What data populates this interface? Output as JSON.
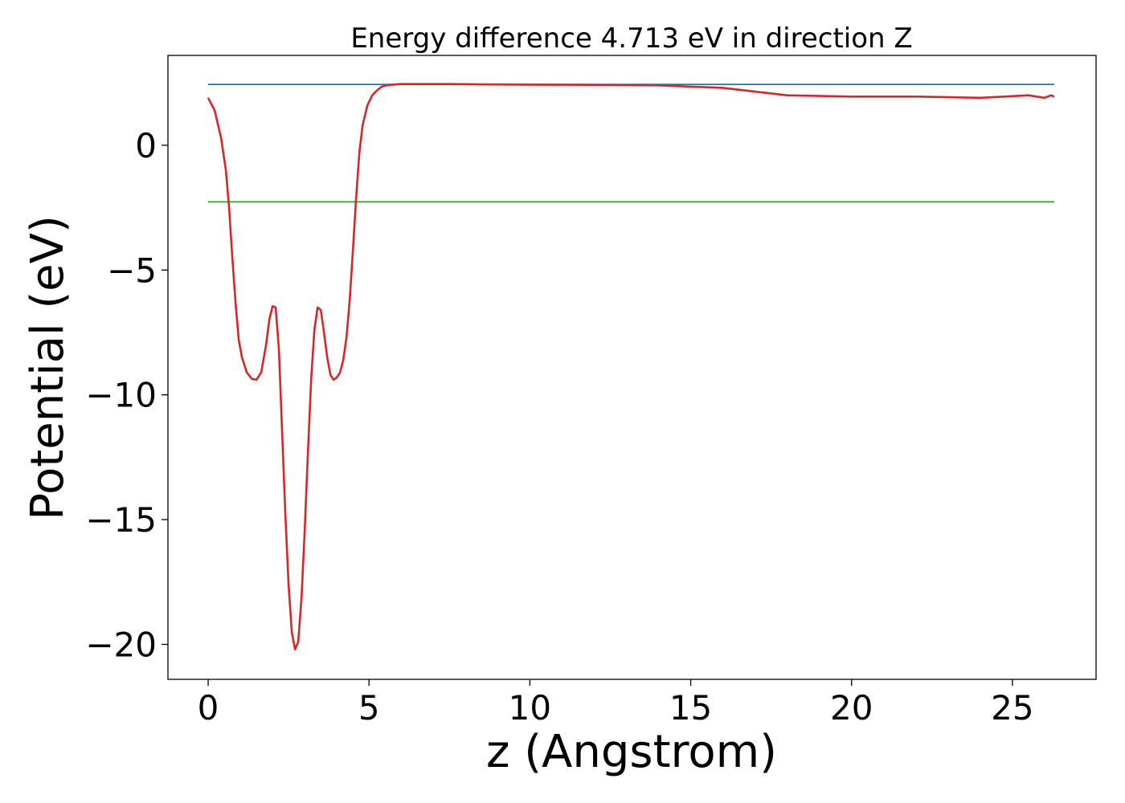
{
  "chart_data": {
    "type": "line",
    "title": "Energy difference 4.713 eV in direction Z",
    "xlabel": "z (Angstrom)",
    "ylabel": "Potential (eV)",
    "xlim": [
      -1.25,
      27.6
    ],
    "ylim": [
      -21.4,
      3.6
    ],
    "xticks": [
      0,
      5,
      10,
      15,
      20,
      25
    ],
    "xtick_labels": [
      "0",
      "5",
      "10",
      "15",
      "20",
      "25"
    ],
    "yticks": [
      0,
      -5,
      -10,
      -15,
      -20
    ],
    "ytick_labels": [
      "0",
      "−5",
      "−10",
      "−15",
      "−20"
    ],
    "grid": false,
    "series": [
      {
        "color": "#1f77b4",
        "x": [
          0,
          26.3
        ],
        "y": [
          2.44,
          2.44
        ]
      },
      {
        "color": "#2ca02c",
        "x": [
          0,
          26.3
        ],
        "y": [
          -2.27,
          -2.27
        ]
      },
      {
        "color": "#d62728",
        "x": [
          0,
          0.2,
          0.4,
          0.55,
          0.65,
          0.75,
          0.85,
          0.95,
          1.05,
          1.2,
          1.35,
          1.5,
          1.65,
          1.8,
          1.9,
          2.0,
          2.1,
          2.2,
          2.3,
          2.4,
          2.5,
          2.6,
          2.7,
          2.8,
          2.9,
          3.0,
          3.1,
          3.2,
          3.3,
          3.4,
          3.5,
          3.6,
          3.7,
          3.8,
          3.9,
          4.0,
          4.1,
          4.2,
          4.3,
          4.4,
          4.5,
          4.6,
          4.7,
          4.8,
          4.95,
          5.1,
          5.25,
          5.4,
          5.55,
          5.65,
          5.75,
          5.85,
          6.0,
          6.2,
          6.5,
          7.0,
          7.5,
          8.5,
          10,
          12,
          14,
          16,
          18,
          20,
          22,
          24,
          25.5,
          26.0,
          26.2,
          26.3
        ],
        "y": [
          1.9,
          1.4,
          0.3,
          -1.0,
          -2.5,
          -4.5,
          -6.3,
          -7.8,
          -8.5,
          -9.1,
          -9.35,
          -9.4,
          -9.1,
          -8.0,
          -7.0,
          -6.45,
          -6.5,
          -8.2,
          -11.5,
          -14.8,
          -17.6,
          -19.5,
          -20.2,
          -19.9,
          -18.2,
          -15.5,
          -12.3,
          -9.4,
          -7.4,
          -6.5,
          -6.6,
          -7.5,
          -8.5,
          -9.2,
          -9.4,
          -9.3,
          -9.1,
          -8.6,
          -7.7,
          -6.2,
          -4.2,
          -2.1,
          -0.3,
          0.8,
          1.6,
          2.0,
          2.2,
          2.35,
          2.4,
          2.42,
          2.43,
          2.44,
          2.45,
          2.45,
          2.45,
          2.45,
          2.45,
          2.44,
          2.43,
          2.42,
          2.4,
          2.3,
          2.0,
          1.95,
          1.95,
          1.9,
          2.0,
          1.9,
          2.0,
          1.95
        ]
      }
    ]
  }
}
